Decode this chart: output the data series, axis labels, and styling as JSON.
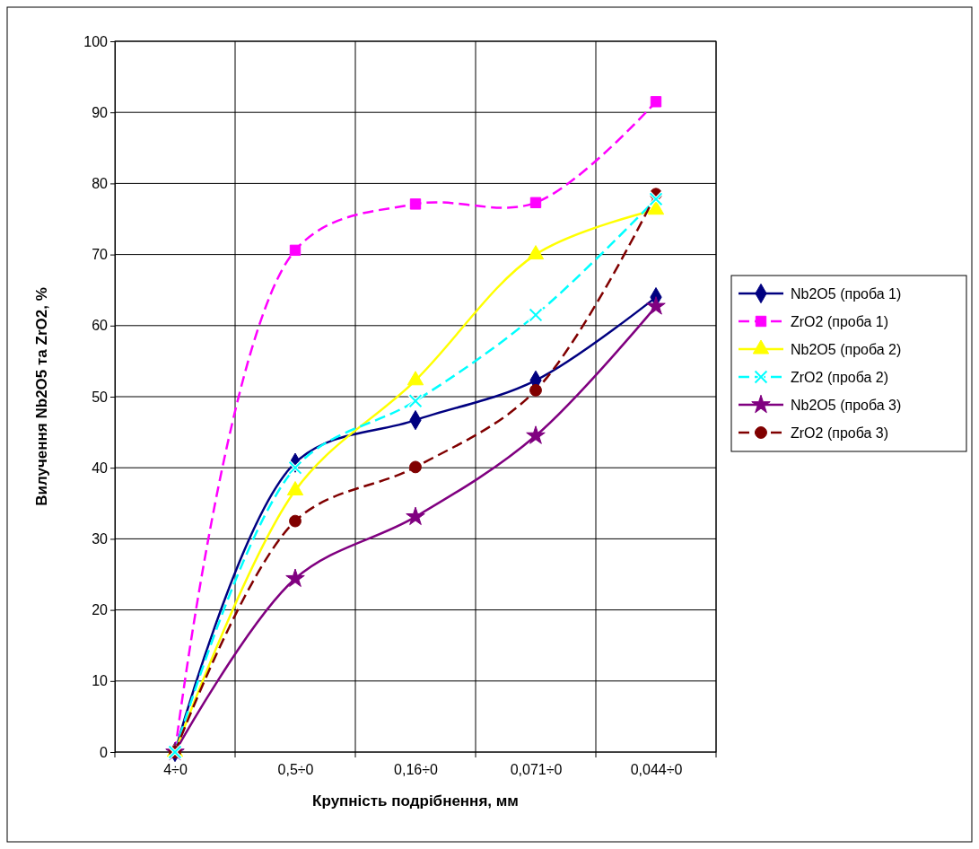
{
  "chart_data": {
    "type": "line",
    "xlabel": "Крупність подрібнення, мм",
    "ylabel": "Вилучення Nb2O5 та ZrO2, %",
    "categories": [
      "4÷0",
      "0,5÷0",
      "0,16÷0",
      "0,071÷0",
      "0,044÷0"
    ],
    "ylim": [
      0,
      100
    ],
    "yticks": [
      0,
      10,
      20,
      30,
      40,
      50,
      60,
      70,
      80,
      90,
      100
    ],
    "grid": true,
    "legend": "right",
    "series": [
      {
        "name": "Nb2O5 (проба 1)",
        "color": "#000080",
        "marker": "diamond",
        "line_style": "solid",
        "values": [
          0,
          40.7,
          46.7,
          52.3,
          64
        ]
      },
      {
        "name": "ZrO2 (проба 1)",
        "color": "#ff00ff",
        "marker": "square",
        "line_style": "dashed",
        "values": [
          0,
          70.6,
          77.1,
          77.3,
          91.5
        ]
      },
      {
        "name": "Nb2O5 (проба 2)",
        "color": "#ffff00",
        "marker": "triangle",
        "line_style": "solid",
        "values": [
          0,
          36.8,
          52.3,
          70,
          76.3
        ]
      },
      {
        "name": "ZrO2 (проба 2)",
        "color": "#00ffff",
        "marker": "cross",
        "line_style": "dashed",
        "values": [
          0,
          40,
          49.4,
          61.5,
          77.8
        ]
      },
      {
        "name": "Nb2O5 (проба 3)",
        "color": "#800080",
        "marker": "star",
        "line_style": "solid",
        "values": [
          0,
          24.4,
          33.1,
          44.5,
          62.7
        ]
      },
      {
        "name": "ZrO2 (проба 3)",
        "color": "#800000",
        "marker": "circle",
        "line_style": "dashed",
        "values": [
          0,
          32.5,
          40.1,
          50.9,
          78.5
        ]
      }
    ]
  }
}
